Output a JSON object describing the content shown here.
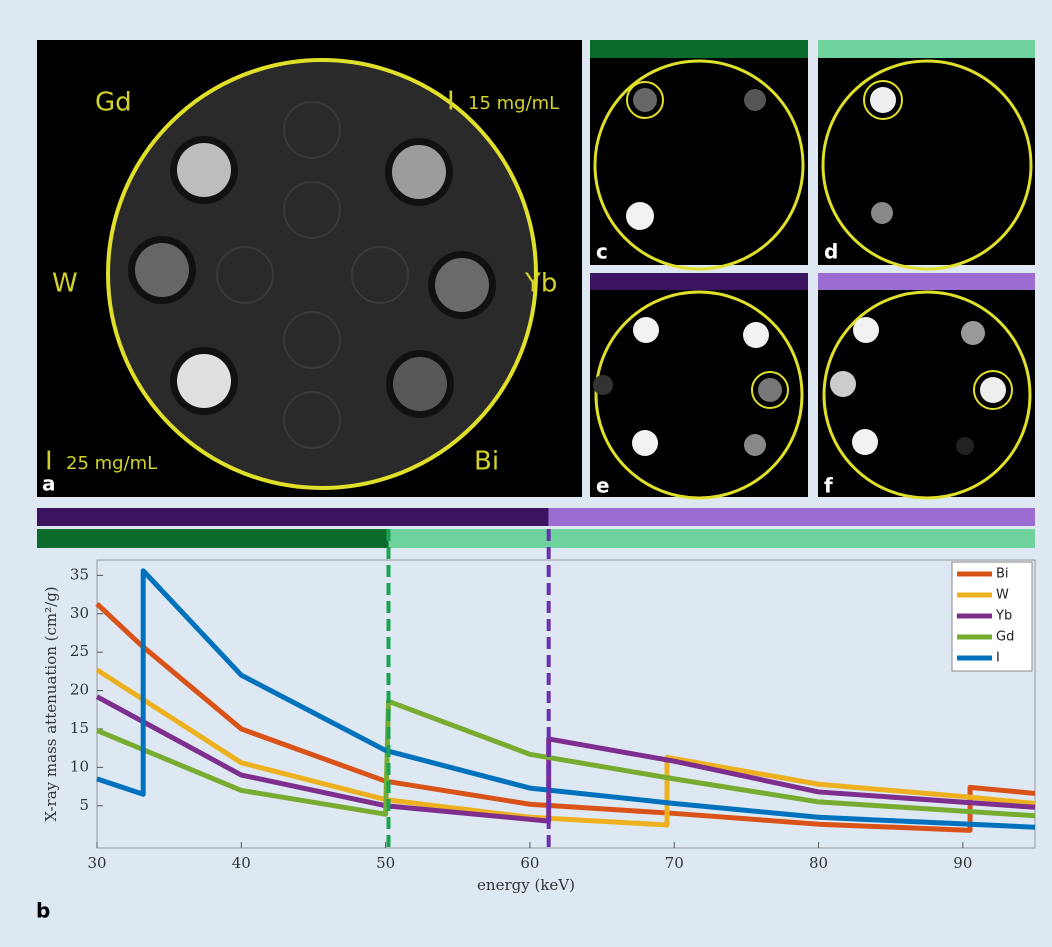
{
  "panel_labels": [
    "a",
    "b",
    "c",
    "d",
    "e",
    "f"
  ],
  "phantom_labels": {
    "gd": "Gd",
    "i_top": "I",
    "conc_top": "15 mg/mL",
    "w": "W",
    "yb": "Yb",
    "i_bottom": "I",
    "conc_bottom": "25 mg/mL",
    "bi": "Bi"
  },
  "chart_data": {
    "type": "line",
    "xlabel": "energy (keV)",
    "ylabel": "X-ray mass attenuation (cm²/g)",
    "xlim": [
      30,
      95
    ],
    "xticks": [
      30,
      40,
      50,
      60,
      70,
      80,
      90
    ],
    "ylim": [
      -0.5,
      37
    ],
    "yticks": [
      5,
      10,
      15,
      20,
      25,
      30,
      35
    ],
    "energy_thresholds": [
      {
        "value": 50.2,
        "color": "#1aa352",
        "below": "#0b6b2b",
        "above": "#6fd39d"
      },
      {
        "value": 61.3,
        "color": "#6a2fb0",
        "below": "#3a1460",
        "above": "#9b6cd1"
      }
    ],
    "legend": "upper right",
    "series": [
      {
        "name": "Bi",
        "color": "#d95319",
        "x": [
          30,
          33,
          40,
          50,
          60,
          70,
          80,
          90.5,
          90.5,
          95
        ],
        "values": [
          31.3,
          26,
          15,
          8.2,
          5.2,
          4,
          2.6,
          1.8,
          7.4,
          6.6
        ]
      },
      {
        "name": "W",
        "color": "#edb120",
        "x": [
          30,
          40,
          50,
          60,
          69.5,
          69.5,
          80,
          90,
          95
        ],
        "values": [
          22.7,
          10.6,
          5.8,
          3.5,
          2.5,
          11.3,
          7.8,
          6.2,
          5.3
        ]
      },
      {
        "name": "Yb",
        "color": "#7e2f8e",
        "x": [
          30,
          40,
          50,
          61.3,
          61.3,
          70,
          80,
          95
        ],
        "values": [
          19.2,
          9,
          5,
          3,
          13.7,
          10.8,
          6.8,
          4.8
        ]
      },
      {
        "name": "Gd",
        "color": "#77ac30",
        "x": [
          30,
          40,
          50,
          50.2,
          60,
          70,
          80,
          95
        ],
        "values": [
          14.8,
          7,
          3.9,
          18.6,
          11.7,
          8.5,
          5.5,
          3.7
        ]
      },
      {
        "name": "I",
        "color": "#0072bd",
        "x": [
          30,
          33.2,
          33.2,
          40,
          50,
          60,
          70,
          80,
          95
        ],
        "values": [
          8.5,
          6.5,
          35.6,
          22,
          12.2,
          7.3,
          5.3,
          3.5,
          2.2
        ]
      }
    ]
  }
}
